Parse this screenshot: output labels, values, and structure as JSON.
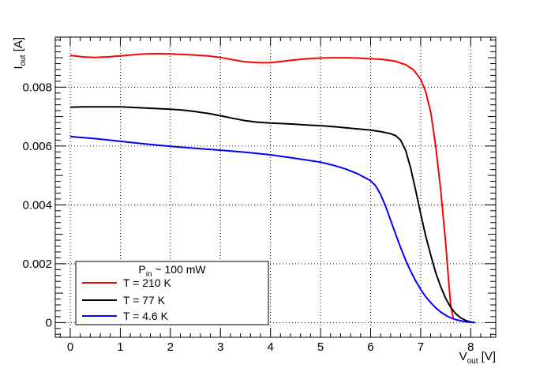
{
  "chart_data": {
    "type": "line",
    "title": "",
    "xlabel": {
      "main": "V",
      "sub": "out",
      "unit": " [V]"
    },
    "ylabel": {
      "main": "I",
      "sub": "out",
      "unit": " [A]"
    },
    "xlim": [
      -0.3,
      8.5
    ],
    "ylim": [
      -0.0005,
      0.0097
    ],
    "x_ticks": [
      0,
      1,
      2,
      3,
      4,
      5,
      6,
      7,
      8
    ],
    "x_tick_labels": [
      "0",
      "1",
      "2",
      "3",
      "4",
      "5",
      "6",
      "7",
      "8"
    ],
    "y_ticks": [
      0,
      0.002,
      0.004,
      0.006,
      0.008
    ],
    "y_tick_labels": [
      "0",
      "0.002",
      "0.004",
      "0.006",
      "0.008"
    ],
    "grid": true,
    "grid_style": "dotted",
    "legend_position": "bottom-left",
    "legend_header": {
      "main": "P",
      "sub": "in",
      "rest": " ~ 100 mW"
    },
    "series": [
      {
        "name": "T = 210 K",
        "color": "#ff0000",
        "x": [
          0,
          0.25,
          0.5,
          0.75,
          1.0,
          1.25,
          1.5,
          1.75,
          2.0,
          2.25,
          2.5,
          2.75,
          3.0,
          3.25,
          3.5,
          3.75,
          4.0,
          4.25,
          4.5,
          4.75,
          5.0,
          5.25,
          5.5,
          5.75,
          6.0,
          6.25,
          6.5,
          6.7,
          6.85,
          7.0,
          7.1,
          7.2,
          7.3,
          7.4,
          7.5,
          7.55,
          7.6,
          7.65
        ],
        "y": [
          0.00908,
          0.00903,
          0.00901,
          0.00903,
          0.00906,
          0.0091,
          0.00913,
          0.00914,
          0.00913,
          0.00911,
          0.00909,
          0.00906,
          0.00901,
          0.00893,
          0.00886,
          0.00883,
          0.00883,
          0.00888,
          0.00893,
          0.00897,
          0.00899,
          0.009,
          0.009,
          0.00899,
          0.00897,
          0.00894,
          0.00888,
          0.00876,
          0.0086,
          0.00827,
          0.00785,
          0.00715,
          0.006,
          0.0045,
          0.0027,
          0.0016,
          0.0006,
          0.00015
        ]
      },
      {
        "name": "T = 77 K",
        "color": "#000000",
        "x": [
          0,
          0.25,
          0.5,
          0.75,
          1.0,
          1.25,
          1.5,
          1.75,
          2.0,
          2.25,
          2.5,
          2.75,
          3.0,
          3.25,
          3.5,
          3.75,
          4.0,
          4.25,
          4.5,
          4.75,
          5.0,
          5.25,
          5.5,
          5.75,
          6.0,
          6.2,
          6.4,
          6.5,
          6.6,
          6.7,
          6.8,
          6.9,
          7.0,
          7.1,
          7.2,
          7.3,
          7.4,
          7.5,
          7.6,
          7.7,
          7.8,
          7.9,
          8.0,
          8.08
        ],
        "y": [
          0.00732,
          0.00733,
          0.00733,
          0.00733,
          0.00733,
          0.00731,
          0.00729,
          0.00727,
          0.00725,
          0.00722,
          0.00717,
          0.00711,
          0.00703,
          0.00694,
          0.00686,
          0.00681,
          0.00678,
          0.00676,
          0.00674,
          0.00671,
          0.00669,
          0.00666,
          0.00662,
          0.00658,
          0.00654,
          0.00649,
          0.00642,
          0.00635,
          0.0062,
          0.00585,
          0.00525,
          0.0045,
          0.0037,
          0.00295,
          0.0023,
          0.0017,
          0.00122,
          0.00082,
          0.00052,
          0.0003,
          0.00016,
          7e-05,
          2e-05,
          0.0
        ]
      },
      {
        "name": "T = 4.6 K",
        "color": "#0000ff",
        "x": [
          0,
          0.5,
          1.0,
          1.5,
          2.0,
          2.5,
          3.0,
          3.5,
          4.0,
          4.5,
          5.0,
          5.25,
          5.5,
          5.75,
          6.0,
          6.1,
          6.2,
          6.3,
          6.4,
          6.5,
          6.6,
          6.7,
          6.8,
          6.9,
          7.0,
          7.1,
          7.2,
          7.3,
          7.4,
          7.5,
          7.6,
          7.7,
          7.8,
          7.9,
          8.0,
          8.08
        ],
        "y": [
          0.00632,
          0.00625,
          0.00616,
          0.00607,
          0.00599,
          0.00592,
          0.00586,
          0.00579,
          0.0057,
          0.00558,
          0.00545,
          0.00535,
          0.00522,
          0.00505,
          0.00482,
          0.00465,
          0.00435,
          0.00395,
          0.00348,
          0.003,
          0.00255,
          0.00212,
          0.00175,
          0.00142,
          0.00113,
          0.00088,
          0.00068,
          0.0005,
          0.00036,
          0.00025,
          0.00016,
          0.0001,
          6e-05,
          3e-05,
          1e-05,
          0.0
        ]
      }
    ]
  }
}
